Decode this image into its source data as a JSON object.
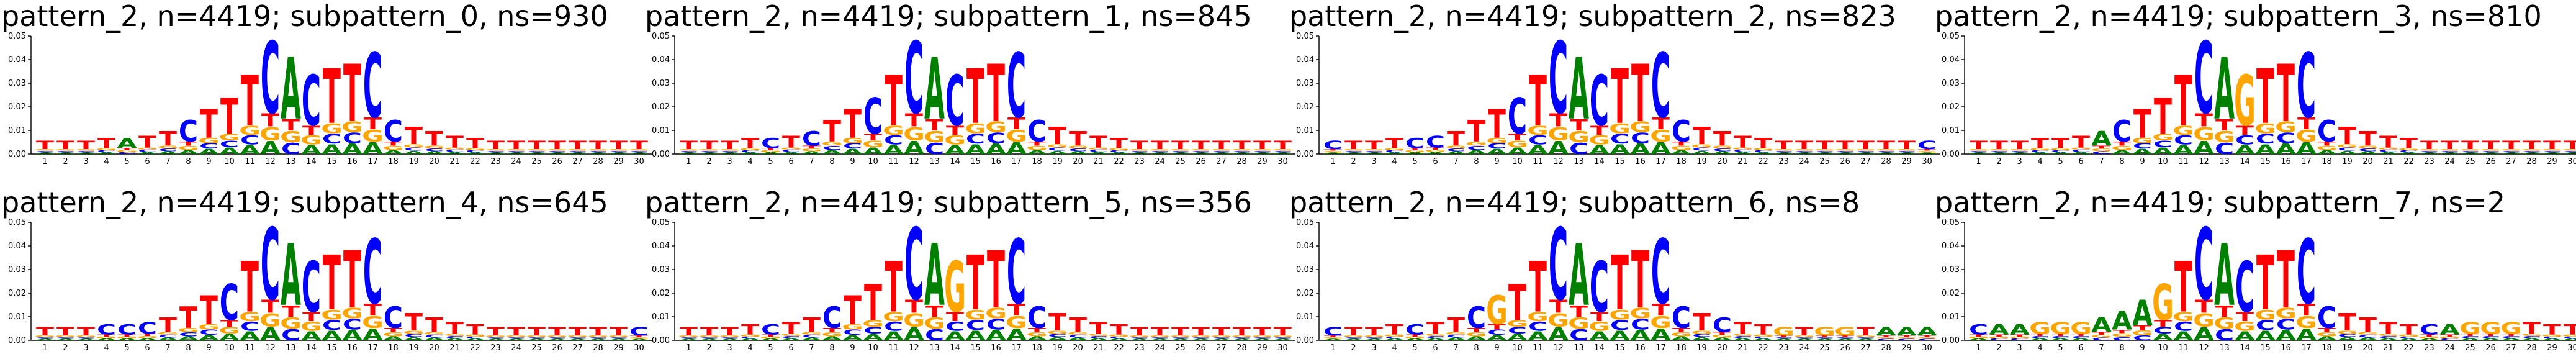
{
  "chart_data": [
    {
      "type": "logo",
      "title": "pattern_2, n=4419; subpattern_0, ns=930",
      "ylim": [
        0,
        0.05
      ],
      "yticks": [
        "0.00",
        "0.01",
        "0.02",
        "0.03",
        "0.04",
        "0.05"
      ],
      "x": [
        1,
        2,
        3,
        4,
        5,
        6,
        7,
        8,
        9,
        10,
        11,
        12,
        13,
        14,
        15,
        16,
        17,
        18,
        19,
        20,
        21,
        22,
        23,
        24,
        25,
        26,
        27,
        28,
        29,
        30
      ],
      "top_letters": [
        "T",
        "T",
        "T",
        "T",
        "A",
        "T",
        "T",
        "C",
        "T",
        "T",
        "T",
        "C",
        "A",
        "C",
        "T",
        "T",
        "C",
        "C",
        "T",
        "T",
        "T",
        "T",
        "T",
        "T",
        "T",
        "T",
        "T",
        "T",
        "T",
        "T"
      ],
      "column_heights": [
        0.006,
        0.006,
        0.006,
        0.007,
        0.007,
        0.008,
        0.01,
        0.015,
        0.02,
        0.025,
        0.035,
        0.05,
        0.043,
        0.035,
        0.038,
        0.04,
        0.045,
        0.015,
        0.012,
        0.01,
        0.008,
        0.007,
        0.006,
        0.006,
        0.006,
        0.006,
        0.006,
        0.006,
        0.006,
        0.006
      ]
    },
    {
      "type": "logo",
      "title": "pattern_2, n=4419; subpattern_1, ns=845",
      "ylim": [
        0,
        0.05
      ],
      "yticks": [
        "0.00",
        "0.01",
        "0.02",
        "0.03",
        "0.04",
        "0.05"
      ],
      "x": [
        1,
        2,
        3,
        4,
        5,
        6,
        7,
        8,
        9,
        10,
        11,
        12,
        13,
        14,
        15,
        16,
        17,
        18,
        19,
        20,
        21,
        22,
        23,
        24,
        25,
        26,
        27,
        28,
        29,
        30
      ],
      "top_letters": [
        "T",
        "T",
        "T",
        "T",
        "C",
        "T",
        "C",
        "T",
        "T",
        "C",
        "T",
        "C",
        "A",
        "C",
        "T",
        "T",
        "C",
        "C",
        "T",
        "T",
        "T",
        "T",
        "T",
        "T",
        "T",
        "T",
        "T",
        "T",
        "T",
        "T"
      ],
      "column_heights": [
        0.006,
        0.006,
        0.006,
        0.007,
        0.007,
        0.008,
        0.01,
        0.015,
        0.02,
        0.025,
        0.035,
        0.05,
        0.043,
        0.035,
        0.038,
        0.04,
        0.045,
        0.015,
        0.012,
        0.01,
        0.008,
        0.007,
        0.006,
        0.006,
        0.006,
        0.006,
        0.006,
        0.006,
        0.006,
        0.006
      ]
    },
    {
      "type": "logo",
      "title": "pattern_2, n=4419; subpattern_2, ns=823",
      "ylim": [
        0,
        0.05
      ],
      "yticks": [
        "0.00",
        "0.01",
        "0.02",
        "0.03",
        "0.04",
        "0.05"
      ],
      "x": [
        1,
        2,
        3,
        4,
        5,
        6,
        7,
        8,
        9,
        10,
        11,
        12,
        13,
        14,
        15,
        16,
        17,
        18,
        19,
        20,
        21,
        22,
        23,
        24,
        25,
        26,
        27,
        28,
        29,
        30
      ],
      "top_letters": [
        "C",
        "T",
        "T",
        "T",
        "C",
        "C",
        "T",
        "T",
        "T",
        "C",
        "T",
        "C",
        "A",
        "C",
        "T",
        "T",
        "C",
        "C",
        "T",
        "T",
        "T",
        "T",
        "T",
        "T",
        "T",
        "T",
        "T",
        "T",
        "T",
        "C"
      ],
      "column_heights": [
        0.006,
        0.006,
        0.006,
        0.007,
        0.007,
        0.008,
        0.01,
        0.015,
        0.02,
        0.025,
        0.035,
        0.05,
        0.043,
        0.035,
        0.038,
        0.04,
        0.045,
        0.015,
        0.012,
        0.01,
        0.008,
        0.007,
        0.006,
        0.006,
        0.006,
        0.006,
        0.006,
        0.006,
        0.006,
        0.006
      ]
    },
    {
      "type": "logo",
      "title": "pattern_2, n=4419; subpattern_3, ns=810",
      "ylim": [
        0,
        0.05
      ],
      "yticks": [
        "0.00",
        "0.01",
        "0.02",
        "0.03",
        "0.04",
        "0.05"
      ],
      "x": [
        1,
        2,
        3,
        4,
        5,
        6,
        7,
        8,
        9,
        10,
        11,
        12,
        13,
        14,
        15,
        16,
        17,
        18,
        19,
        20,
        21,
        22,
        23,
        24,
        25,
        26,
        27,
        28,
        29,
        30
      ],
      "top_letters": [
        "T",
        "T",
        "T",
        "T",
        "T",
        "T",
        "A",
        "C",
        "T",
        "T",
        "T",
        "C",
        "A",
        "G",
        "T",
        "T",
        "C",
        "C",
        "T",
        "T",
        "T",
        "T",
        "T",
        "T",
        "T",
        "T",
        "T",
        "T",
        "T",
        "T"
      ],
      "column_heights": [
        0.006,
        0.006,
        0.006,
        0.007,
        0.007,
        0.008,
        0.01,
        0.015,
        0.02,
        0.025,
        0.035,
        0.05,
        0.043,
        0.035,
        0.038,
        0.04,
        0.045,
        0.015,
        0.012,
        0.01,
        0.008,
        0.007,
        0.006,
        0.006,
        0.006,
        0.006,
        0.006,
        0.006,
        0.006,
        0.006
      ]
    },
    {
      "type": "logo",
      "title": "pattern_2, n=4419; subpattern_4, ns=645",
      "ylim": [
        0,
        0.05
      ],
      "yticks": [
        "0.00",
        "0.01",
        "0.02",
        "0.03",
        "0.04",
        "0.05"
      ],
      "x": [
        1,
        2,
        3,
        4,
        5,
        6,
        7,
        8,
        9,
        10,
        11,
        12,
        13,
        14,
        15,
        16,
        17,
        18,
        19,
        20,
        21,
        22,
        23,
        24,
        25,
        26,
        27,
        28,
        29,
        30
      ],
      "top_letters": [
        "T",
        "T",
        "T",
        "C",
        "C",
        "C",
        "T",
        "T",
        "T",
        "C",
        "T",
        "C",
        "A",
        "C",
        "T",
        "T",
        "C",
        "C",
        "T",
        "T",
        "T",
        "T",
        "T",
        "T",
        "T",
        "T",
        "T",
        "T",
        "T",
        "C"
      ],
      "column_heights": [
        0.006,
        0.006,
        0.006,
        0.007,
        0.007,
        0.008,
        0.01,
        0.015,
        0.02,
        0.025,
        0.035,
        0.05,
        0.043,
        0.035,
        0.038,
        0.04,
        0.045,
        0.015,
        0.012,
        0.01,
        0.008,
        0.007,
        0.006,
        0.006,
        0.006,
        0.006,
        0.006,
        0.006,
        0.006,
        0.006
      ]
    },
    {
      "type": "logo",
      "title": "pattern_2, n=4419; subpattern_5, ns=356",
      "ylim": [
        0,
        0.05
      ],
      "yticks": [
        "0.00",
        "0.01",
        "0.02",
        "0.03",
        "0.04",
        "0.05"
      ],
      "x": [
        1,
        2,
        3,
        4,
        5,
        6,
        7,
        8,
        9,
        10,
        11,
        12,
        13,
        14,
        15,
        16,
        17,
        18,
        19,
        20,
        21,
        22,
        23,
        24,
        25,
        26,
        27,
        28,
        29,
        30
      ],
      "top_letters": [
        "T",
        "T",
        "T",
        "T",
        "C",
        "T",
        "T",
        "C",
        "T",
        "T",
        "T",
        "C",
        "A",
        "G",
        "T",
        "T",
        "C",
        "C",
        "T",
        "T",
        "T",
        "T",
        "T",
        "T",
        "T",
        "T",
        "T",
        "T",
        "T",
        "T"
      ],
      "column_heights": [
        0.006,
        0.006,
        0.006,
        0.007,
        0.007,
        0.008,
        0.01,
        0.015,
        0.02,
        0.025,
        0.035,
        0.05,
        0.043,
        0.035,
        0.038,
        0.04,
        0.045,
        0.015,
        0.012,
        0.01,
        0.008,
        0.007,
        0.006,
        0.006,
        0.006,
        0.006,
        0.006,
        0.006,
        0.006,
        0.006
      ]
    },
    {
      "type": "logo",
      "title": "pattern_2, n=4419; subpattern_6, ns=8",
      "ylim": [
        0,
        0.05
      ],
      "yticks": [
        "0.00",
        "0.01",
        "0.02",
        "0.03",
        "0.04",
        "0.05"
      ],
      "x": [
        1,
        2,
        3,
        4,
        5,
        6,
        7,
        8,
        9,
        10,
        11,
        12,
        13,
        14,
        15,
        16,
        17,
        18,
        19,
        20,
        21,
        22,
        23,
        24,
        25,
        26,
        27,
        28,
        29,
        30
      ],
      "top_letters": [
        "C",
        "T",
        "T",
        "T",
        "C",
        "T",
        "T",
        "C",
        "G",
        "T",
        "T",
        "C",
        "A",
        "C",
        "T",
        "T",
        "C",
        "C",
        "T",
        "C",
        "T",
        "T",
        "G",
        "T",
        "G",
        "G",
        "T",
        "A",
        "A",
        "A"
      ],
      "column_heights": [
        0.006,
        0.006,
        0.006,
        0.007,
        0.007,
        0.008,
        0.01,
        0.015,
        0.02,
        0.025,
        0.035,
        0.05,
        0.043,
        0.035,
        0.038,
        0.04,
        0.045,
        0.015,
        0.012,
        0.01,
        0.008,
        0.007,
        0.006,
        0.006,
        0.006,
        0.006,
        0.006,
        0.006,
        0.006,
        0.006
      ]
    },
    {
      "type": "logo",
      "title": "pattern_2, n=4419; subpattern_7, ns=2",
      "ylim": [
        0,
        0.05
      ],
      "yticks": [
        "0.00",
        "0.01",
        "0.02",
        "0.03",
        "0.04",
        "0.05"
      ],
      "x": [
        1,
        2,
        3,
        4,
        5,
        6,
        7,
        8,
        9,
        10,
        11,
        12,
        13,
        14,
        15,
        16,
        17,
        18,
        19,
        20,
        21,
        22,
        23,
        24,
        25,
        26,
        27,
        28,
        29,
        30
      ],
      "top_letters": [
        "C",
        "A",
        "A",
        "G",
        "G",
        "G",
        "A",
        "A",
        "A",
        "G",
        "T",
        "C",
        "A",
        "C",
        "T",
        "T",
        "C",
        "C",
        "T",
        "T",
        "T",
        "T",
        "C",
        "A",
        "G",
        "G",
        "G",
        "T",
        "T",
        "T"
      ],
      "column_heights": [
        0.007,
        0.007,
        0.007,
        0.008,
        0.008,
        0.008,
        0.01,
        0.013,
        0.018,
        0.025,
        0.035,
        0.05,
        0.043,
        0.035,
        0.038,
        0.04,
        0.045,
        0.015,
        0.012,
        0.01,
        0.008,
        0.007,
        0.007,
        0.007,
        0.008,
        0.008,
        0.008,
        0.008,
        0.007,
        0.007
      ]
    }
  ],
  "colors": {
    "A": "#008000",
    "C": "#0000ff",
    "G": "#ffa500",
    "T": "#ff0000",
    "axis": "#000000"
  }
}
